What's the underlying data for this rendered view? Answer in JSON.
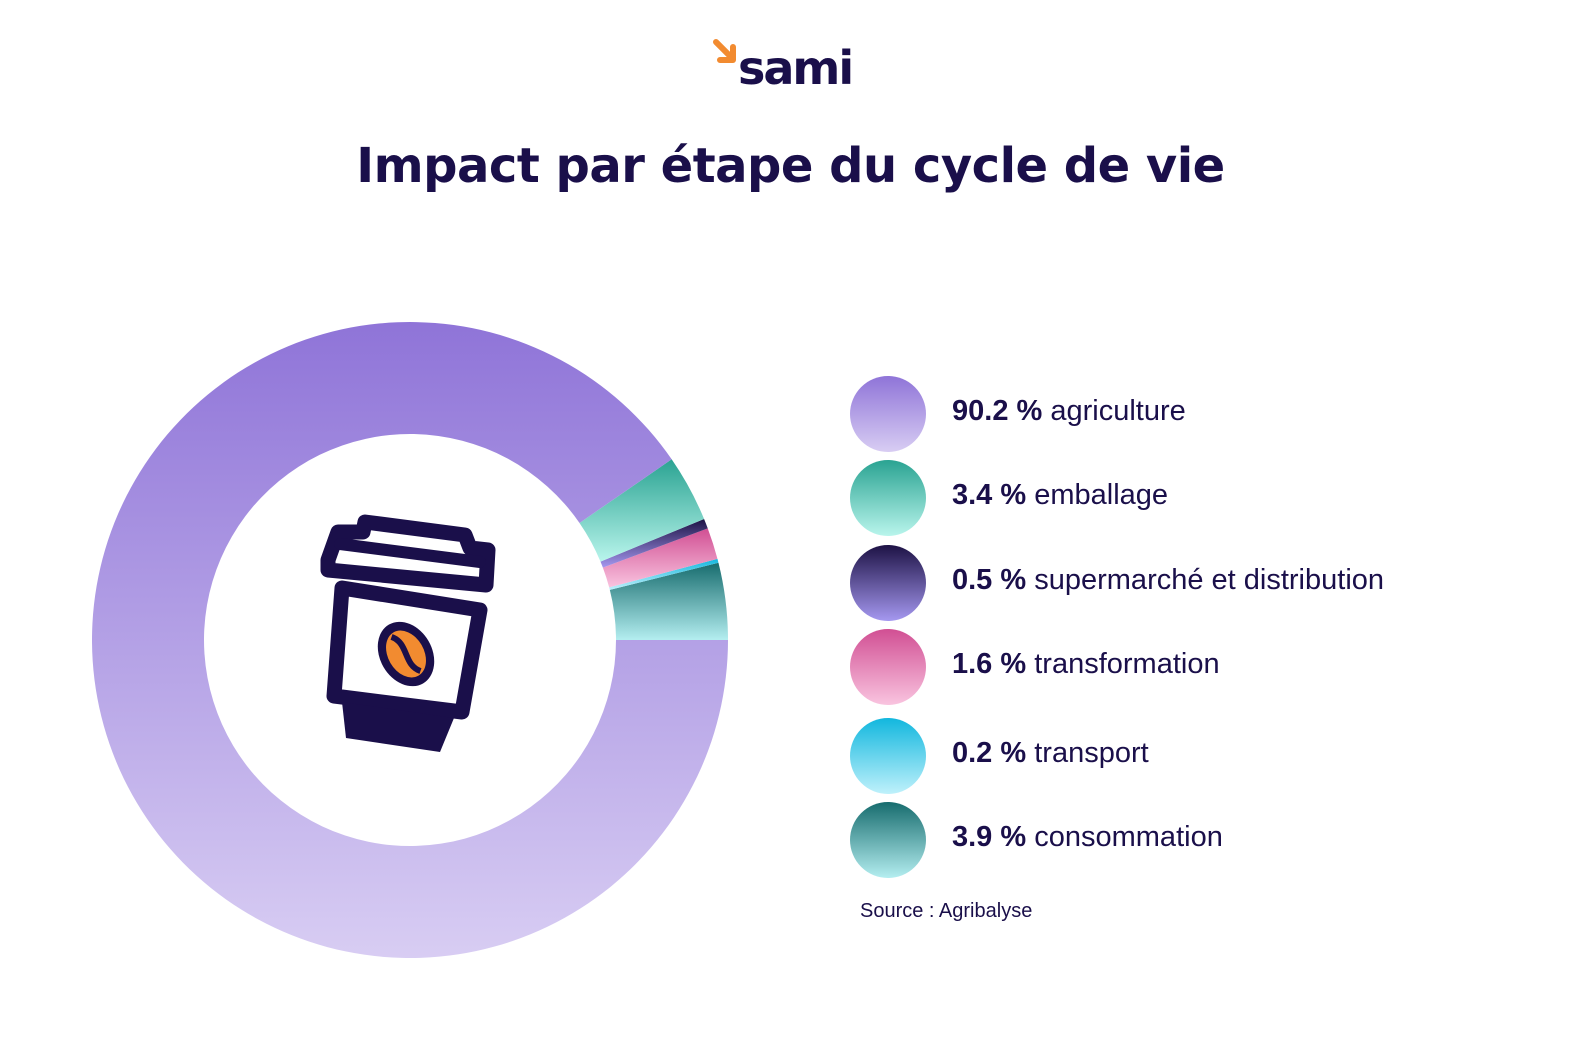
{
  "brand": {
    "name": "sami",
    "arrow_color": "#f28b30",
    "text_color": "#1a0f4a"
  },
  "chart_data": {
    "type": "pie",
    "title": "Impact par étape du cycle de vie",
    "center_icon": "coffee-cup-icon",
    "slices": [
      {
        "pct_label": "90.2 %",
        "label": "agriculture",
        "value": 90.2,
        "color_top": "#8f74d8",
        "color_bottom": "#d8cdf3"
      },
      {
        "pct_label": "3.4 %",
        "label": "emballage",
        "value": 3.4,
        "color_top": "#2aa392",
        "color_bottom": "#b9f5ec"
      },
      {
        "pct_label": "0.5 %",
        "label": "supermarché et distribution",
        "value": 0.5,
        "color_top": "#1d1245",
        "color_bottom": "#a598f0"
      },
      {
        "pct_label": "1.6 %",
        "label": "transformation",
        "value": 1.6,
        "color_top": "#d14f93",
        "color_bottom": "#f9c4df"
      },
      {
        "pct_label": "0.2 %",
        "label": "transport",
        "value": 0.2,
        "color_top": "#12b7de",
        "color_bottom": "#bff1fb"
      },
      {
        "pct_label": "3.9 %",
        "label": "consommation",
        "value": 3.9,
        "color_top": "#176c6e",
        "color_bottom": "#b4eef0"
      }
    ],
    "source": "Source : Agribalyse"
  }
}
